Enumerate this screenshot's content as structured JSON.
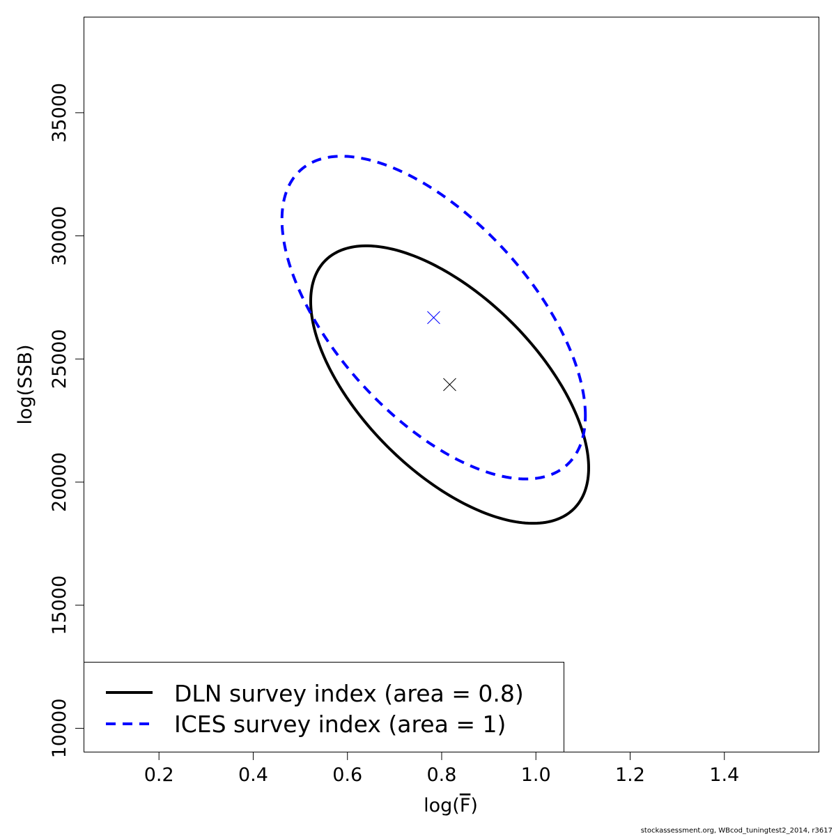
{
  "chart_data": {
    "type": "scatter",
    "title": "",
    "xlabel_prefix": "log(",
    "xlabel_symbol": "F",
    "xlabel_suffix": ")",
    "ylabel": "log(SSB)",
    "xlim": [
      0.04,
      1.6
    ],
    "ylim": [
      9050,
      38900
    ],
    "x_ticks": [
      0.2,
      0.4,
      0.6,
      0.8,
      1.0,
      1.2,
      1.4
    ],
    "x_tick_labels": [
      "0.2",
      "0.4",
      "0.6",
      "0.8",
      "1.0",
      "1.2",
      "1.4"
    ],
    "y_ticks": [
      10000,
      15000,
      20000,
      25000,
      30000,
      35000
    ],
    "y_tick_labels": [
      "10000",
      "15000",
      "20000",
      "25000",
      "30000",
      "35000"
    ],
    "grid": false,
    "legend_position": "bottom-left",
    "series": [
      {
        "name": "DLN survey index (area = 0.8)",
        "color": "#000000",
        "line_style": "solid",
        "center": {
          "x": 0.817,
          "y": 23960
        },
        "x_half_range": 0.295,
        "y_half_range": 5635,
        "correlation": -0.6,
        "marker": "x"
      },
      {
        "name": "ICES survey index (area = 1)",
        "color": "#0000ff",
        "line_style": "dashed",
        "center": {
          "x": 0.783,
          "y": 26680
        },
        "x_half_range": 0.322,
        "y_half_range": 6554,
        "correlation": -0.607,
        "marker": "x"
      }
    ]
  },
  "footer": "stockassessment.org, WBcod_tuningtest2_2014, r3617"
}
